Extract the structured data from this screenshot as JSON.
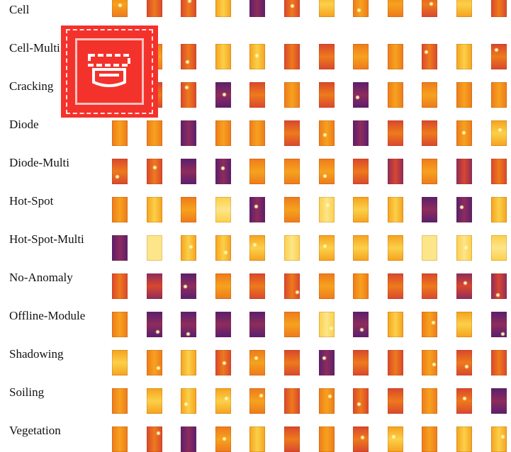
{
  "figure": {
    "row_labels": [
      "Cell",
      "Cell-Multi",
      "Cracking",
      "Diode",
      "Diode-Multi",
      "Hot-Spot",
      "Hot-Spot-Multi",
      "No-Anomaly",
      "Offline-Module",
      "Shadowing",
      "Soiling",
      "Vegetation"
    ],
    "columns_per_row": 12
  },
  "palette": {
    "dark_purple": "#5a1f6e",
    "magenta": "#8e2c5c",
    "red_orange": "#d9472e",
    "orange": "#ee7a1c",
    "amber": "#f6a21e",
    "yellow": "#fbd049",
    "pale_yellow": "#fde58a"
  },
  "overlay": {
    "icon": "broken-image-icon",
    "color": "#f4322c"
  }
}
